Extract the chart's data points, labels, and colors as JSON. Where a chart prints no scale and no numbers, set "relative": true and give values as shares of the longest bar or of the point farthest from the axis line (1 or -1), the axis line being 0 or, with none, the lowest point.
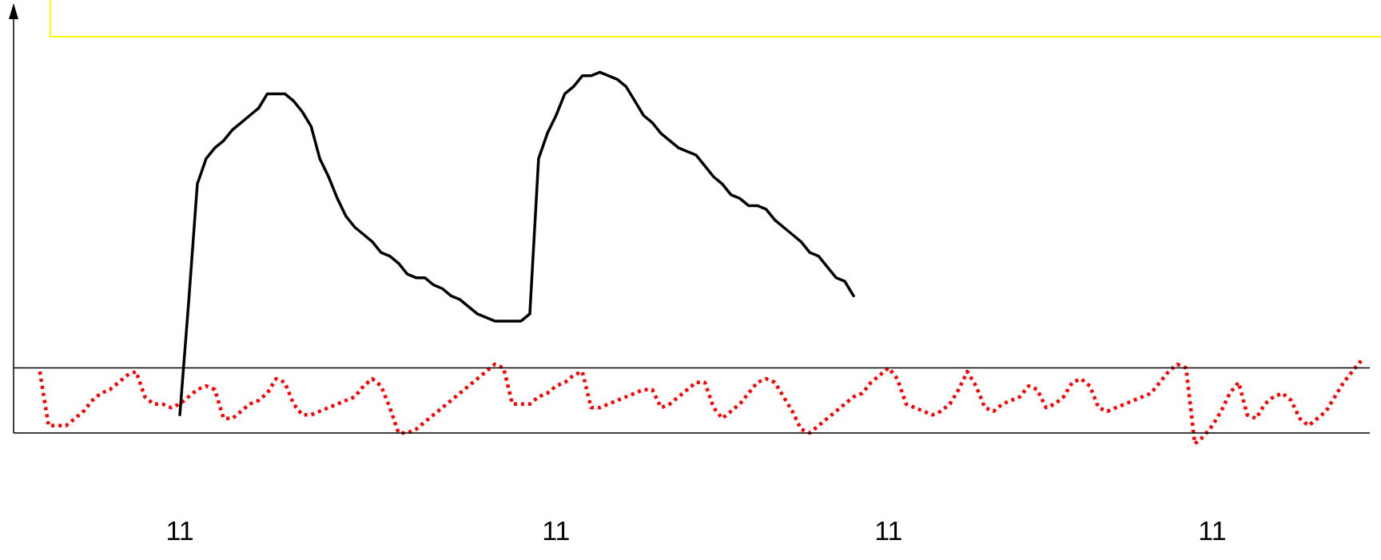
{
  "chart_data": {
    "type": "line",
    "relative": true,
    "marker": "none",
    "grid": false,
    "legend": false,
    "categories": [
      null,
      null,
      null,
      null,
      null,
      null,
      null,
      null,
      null,
      null,
      null,
      null,
      null,
      null,
      null,
      null,
      null,
      null,
      null,
      "11",
      null,
      null,
      null,
      null,
      null,
      null,
      null,
      null,
      null,
      null,
      null,
      null,
      null,
      null,
      null,
      null,
      null,
      null,
      null,
      null,
      null,
      null,
      null,
      null,
      null,
      null,
      null,
      null,
      null,
      null,
      null,
      null,
      null,
      null,
      null,
      null,
      null,
      null,
      null,
      null,
      null,
      null,
      "11",
      null,
      null,
      null,
      null,
      null,
      null,
      null,
      null,
      null,
      null,
      null,
      null,
      null,
      null,
      null,
      null,
      null,
      null,
      null,
      null,
      null,
      null,
      null,
      null,
      null,
      null,
      null,
      null,
      null,
      null,
      null,
      null,
      null,
      null,
      null,
      null,
      null,
      "11",
      null,
      null,
      null,
      null,
      null,
      null,
      null,
      null,
      null,
      null,
      null,
      null,
      null,
      null,
      null,
      null,
      null,
      null,
      null,
      null,
      null,
      null,
      null,
      null,
      null,
      null,
      null,
      null,
      null,
      null,
      null,
      null,
      null,
      null,
      null,
      null,
      "11",
      null,
      null,
      null,
      null,
      null,
      null,
      null,
      null,
      null,
      null,
      null,
      null,
      null,
      null,
      null,
      null,
      null,
      null
    ],
    "series": [
      {
        "color": "#000000",
        "line_style": "solid",
        "values": [
          null,
          null,
          null,
          null,
          null,
          null,
          null,
          null,
          null,
          null,
          null,
          null,
          null,
          null,
          null,
          null,
          null,
          null,
          null,
          0.05,
          0.36,
          0.69,
          0.76,
          0.79,
          0.81,
          0.84,
          0.86,
          0.88,
          0.9,
          0.94,
          0.94,
          0.94,
          0.92,
          0.89,
          0.85,
          0.76,
          0.71,
          0.65,
          0.6,
          0.57,
          0.55,
          0.53,
          0.5,
          0.49,
          0.47,
          0.44,
          0.43,
          0.43,
          0.41,
          0.4,
          0.38,
          0.37,
          0.35,
          0.33,
          0.32,
          0.31,
          0.31,
          0.31,
          0.31,
          0.33,
          0.76,
          0.83,
          0.88,
          0.94,
          0.96,
          0.99,
          0.99,
          1,
          0.99,
          0.98,
          0.96,
          0.92,
          0.88,
          0.86,
          0.83,
          0.81,
          0.79,
          0.78,
          0.77,
          0.74,
          0.71,
          0.69,
          0.66,
          0.65,
          0.63,
          0.63,
          0.62,
          0.59,
          0.57,
          0.55,
          0.53,
          0.5,
          0.49,
          0.46,
          0.43,
          0.42,
          0.38,
          null,
          null,
          null,
          null,
          null,
          null,
          null,
          null,
          null,
          null,
          null,
          null,
          null,
          null,
          null,
          null,
          null,
          null,
          null,
          null,
          null,
          null,
          null,
          null,
          null,
          null,
          null,
          null,
          null,
          null,
          null,
          null,
          null,
          null,
          null,
          null,
          null,
          null,
          null,
          null,
          null,
          null,
          null,
          null,
          null,
          null,
          null,
          null,
          null,
          null,
          null,
          null,
          null,
          null,
          null,
          null,
          null,
          null,
          null
        ]
      },
      {
        "color": "#ff0000",
        "line_style": "dotted",
        "values": [
          null,
          null,
          null,
          0.17,
          0.02,
          0.02,
          0.02,
          0.04,
          0.06,
          0.09,
          0.11,
          0.12,
          0.14,
          0.16,
          0.17,
          0.1,
          0.08,
          0.08,
          0.07,
          0.08,
          0.1,
          0.12,
          0.13,
          0.12,
          0.04,
          0.04,
          0.06,
          0.08,
          0.09,
          0.11,
          0.15,
          0.14,
          0.08,
          0.05,
          0.05,
          0.06,
          0.07,
          0.08,
          0.09,
          0.1,
          0.13,
          0.15,
          0.13,
          0.07,
          0,
          0,
          0.01,
          0.03,
          0.05,
          0.07,
          0.09,
          0.11,
          0.13,
          0.15,
          0.17,
          0.19,
          0.18,
          0.08,
          0.08,
          0.08,
          0.1,
          0.11,
          0.13,
          0.14,
          0.16,
          0.17,
          0.07,
          0.07,
          0.08,
          0.09,
          0.1,
          0.11,
          0.12,
          0.12,
          0.07,
          0.08,
          0.1,
          0.12,
          0.14,
          0.14,
          0.07,
          0.04,
          0.06,
          0.08,
          0.11,
          0.14,
          0.15,
          0.14,
          0.1,
          0.06,
          0.01,
          0,
          0.02,
          0.04,
          0.06,
          0.08,
          0.1,
          0.11,
          0.14,
          0.16,
          0.18,
          0.15,
          0.08,
          0.07,
          0.06,
          0.05,
          0.06,
          0.08,
          0.12,
          0.17,
          0.13,
          0.07,
          0.06,
          0.08,
          0.09,
          0.1,
          0.13,
          0.12,
          0.07,
          0.08,
          0.1,
          0.14,
          0.15,
          0.13,
          0.07,
          0.06,
          0.07,
          0.08,
          0.09,
          0.1,
          0.11,
          0.14,
          0.17,
          0.19,
          0.18,
          -0.03,
          -0.01,
          0.02,
          0.06,
          0.11,
          0.14,
          0.05,
          0.04,
          0.08,
          0.1,
          0.11,
          0.09,
          0.04,
          0.02,
          0.04,
          0.06,
          0.1,
          0.14,
          0.17,
          0.2,
          null
        ]
      }
    ],
    "ref_lines": [
      {
        "axis": "y",
        "value": 0.18,
        "color": "#000000"
      }
    ]
  }
}
